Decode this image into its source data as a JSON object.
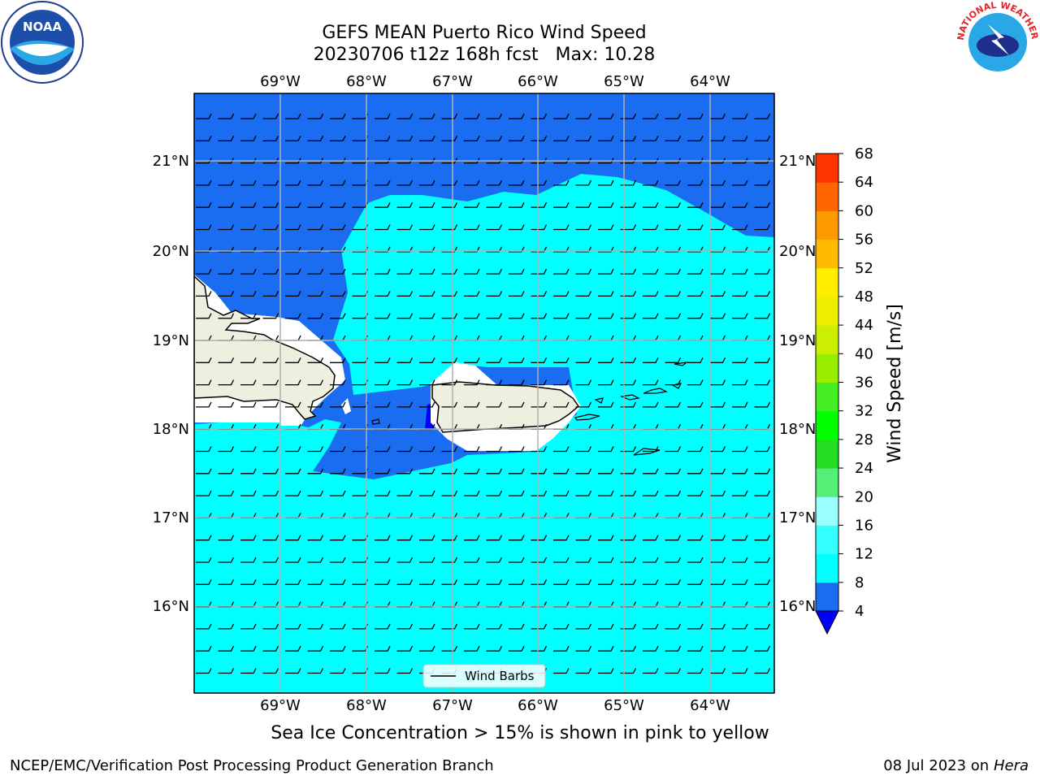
{
  "header": {
    "title_line1": "GEFS MEAN Puerto Rico Wind Speed",
    "title_line2": "20230706 t12z 168h fcst   Max: 10.28"
  },
  "logos": {
    "left": {
      "icon": "noaa-logo",
      "text": "NOAA"
    },
    "right": {
      "icon": "nws-logo",
      "text": "NATIONAL WEATHER SERVICE"
    }
  },
  "map": {
    "lon_labels": [
      "69°W",
      "68°W",
      "67°W",
      "66°W",
      "65°W",
      "64°W"
    ],
    "lat_labels": [
      "21°N",
      "20°N",
      "19°N",
      "18°N",
      "17°N",
      "16°N"
    ],
    "legend_label": "Wind Barbs",
    "colors": {
      "deep_blue": "#1a6cf0",
      "cyan": "#00ffff",
      "land": "#efefdf",
      "dark_blue": "#0000ff"
    }
  },
  "colorbar": {
    "label": "Wind Speed [m/s]",
    "ticks": [
      "4",
      "8",
      "12",
      "16",
      "20",
      "24",
      "28",
      "32",
      "36",
      "40",
      "44",
      "48",
      "52",
      "56",
      "60",
      "64",
      "68"
    ],
    "colors": [
      "#1a6cf0",
      "#00ffff",
      "#33ffff",
      "#99ffff",
      "#55ee77",
      "#22dd22",
      "#00ff00",
      "#44ee22",
      "#99ee00",
      "#ccee00",
      "#eeee00",
      "#ffee00",
      "#ffbb00",
      "#ff9900",
      "#ff6600",
      "#ff3300",
      "#ff0000"
    ]
  },
  "notes": {
    "sea_ice": "Sea Ice Concentration > 15% is shown in pink to yellow"
  },
  "footer": {
    "left": "NCEP/EMC/Verification Post Processing Product Generation Branch",
    "right_date": "08 Jul 2023 on ",
    "right_host": "Hera"
  }
}
